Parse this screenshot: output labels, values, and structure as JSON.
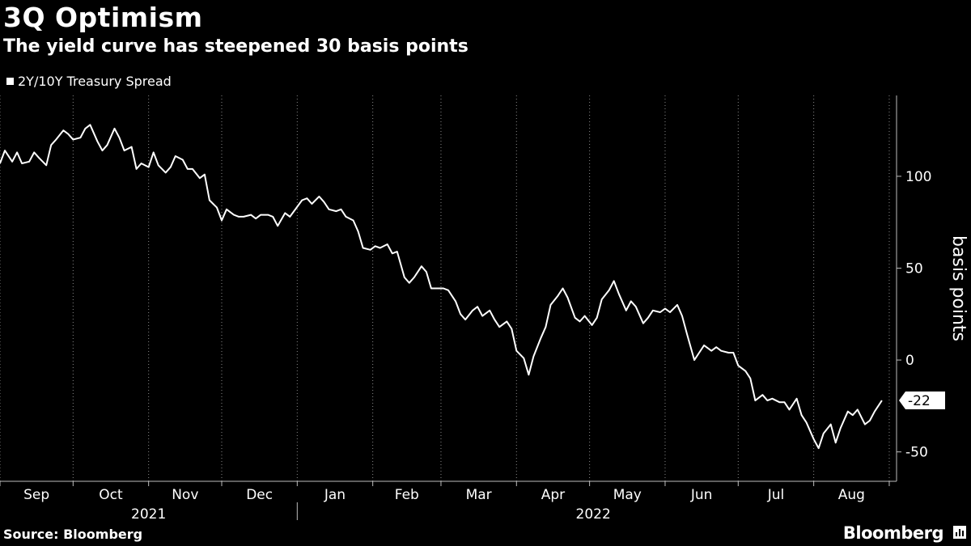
{
  "header": {
    "title": "3Q Optimism",
    "subtitle": "The yield curve has steepened 30 basis points"
  },
  "footer": {
    "source": "Source: Bloomberg",
    "brand": "Bloomberg",
    "brand_icon": "bloomberg-terminal-icon"
  },
  "chart_data": {
    "type": "line",
    "series": [
      {
        "name": "2Y/10Y Treasury Spread",
        "color": "#ffffff",
        "last_value_label": "-22",
        "points": [
          [
            "2021-09-01",
            107
          ],
          [
            "2021-09-03",
            114
          ],
          [
            "2021-09-06",
            108
          ],
          [
            "2021-09-08",
            113
          ],
          [
            "2021-09-10",
            107
          ],
          [
            "2021-09-13",
            108
          ],
          [
            "2021-09-15",
            113
          ],
          [
            "2021-09-17",
            110
          ],
          [
            "2021-09-20",
            106
          ],
          [
            "2021-09-22",
            117
          ],
          [
            "2021-09-24",
            120
          ],
          [
            "2021-09-27",
            125
          ],
          [
            "2021-09-29",
            123
          ],
          [
            "2021-10-01",
            120
          ],
          [
            "2021-10-04",
            121
          ],
          [
            "2021-10-06",
            126
          ],
          [
            "2021-10-08",
            128
          ],
          [
            "2021-10-11",
            119
          ],
          [
            "2021-10-13",
            114
          ],
          [
            "2021-10-15",
            117
          ],
          [
            "2021-10-18",
            126
          ],
          [
            "2021-10-20",
            121
          ],
          [
            "2021-10-22",
            114
          ],
          [
            "2021-10-25",
            116
          ],
          [
            "2021-10-27",
            104
          ],
          [
            "2021-10-29",
            107
          ],
          [
            "2021-11-01",
            105
          ],
          [
            "2021-11-03",
            113
          ],
          [
            "2021-11-05",
            106
          ],
          [
            "2021-11-08",
            102
          ],
          [
            "2021-11-10",
            105
          ],
          [
            "2021-11-12",
            111
          ],
          [
            "2021-11-15",
            109
          ],
          [
            "2021-11-17",
            104
          ],
          [
            "2021-11-19",
            104
          ],
          [
            "2021-11-22",
            99
          ],
          [
            "2021-11-24",
            101
          ],
          [
            "2021-11-26",
            87
          ],
          [
            "2021-11-29",
            83
          ],
          [
            "2021-12-01",
            76
          ],
          [
            "2021-12-03",
            82
          ],
          [
            "2021-12-06",
            79
          ],
          [
            "2021-12-08",
            78
          ],
          [
            "2021-12-10",
            78
          ],
          [
            "2021-12-13",
            79
          ],
          [
            "2021-12-15",
            77
          ],
          [
            "2021-12-17",
            79
          ],
          [
            "2021-12-20",
            79
          ],
          [
            "2021-12-22",
            78
          ],
          [
            "2021-12-24",
            73
          ],
          [
            "2021-12-27",
            80
          ],
          [
            "2021-12-29",
            78
          ],
          [
            "2022-01-03",
            87
          ],
          [
            "2022-01-05",
            88
          ],
          [
            "2022-01-07",
            85
          ],
          [
            "2022-01-10",
            89
          ],
          [
            "2022-01-12",
            86
          ],
          [
            "2022-01-14",
            82
          ],
          [
            "2022-01-17",
            81
          ],
          [
            "2022-01-19",
            82
          ],
          [
            "2022-01-21",
            78
          ],
          [
            "2022-01-24",
            76
          ],
          [
            "2022-01-26",
            70
          ],
          [
            "2022-01-28",
            61
          ],
          [
            "2022-01-31",
            60
          ],
          [
            "2022-02-02",
            62
          ],
          [
            "2022-02-04",
            61
          ],
          [
            "2022-02-07",
            63
          ],
          [
            "2022-02-09",
            58
          ],
          [
            "2022-02-11",
            59
          ],
          [
            "2022-02-14",
            45
          ],
          [
            "2022-02-16",
            42
          ],
          [
            "2022-02-18",
            45
          ],
          [
            "2022-02-21",
            51
          ],
          [
            "2022-02-23",
            48
          ],
          [
            "2022-02-25",
            39
          ],
          [
            "2022-02-28",
            39
          ],
          [
            "2022-03-02",
            39
          ],
          [
            "2022-03-04",
            38
          ],
          [
            "2022-03-07",
            32
          ],
          [
            "2022-03-09",
            25
          ],
          [
            "2022-03-11",
            22
          ],
          [
            "2022-03-14",
            27
          ],
          [
            "2022-03-16",
            29
          ],
          [
            "2022-03-18",
            24
          ],
          [
            "2022-03-21",
            27
          ],
          [
            "2022-03-23",
            22
          ],
          [
            "2022-03-25",
            18
          ],
          [
            "2022-03-28",
            21
          ],
          [
            "2022-03-30",
            17
          ],
          [
            "2022-04-01",
            5
          ],
          [
            "2022-04-04",
            1
          ],
          [
            "2022-04-06",
            -8
          ],
          [
            "2022-04-08",
            2
          ],
          [
            "2022-04-11",
            12
          ],
          [
            "2022-04-13",
            18
          ],
          [
            "2022-04-15",
            30
          ],
          [
            "2022-04-18",
            35
          ],
          [
            "2022-04-20",
            39
          ],
          [
            "2022-04-22",
            34
          ],
          [
            "2022-04-25",
            23
          ],
          [
            "2022-04-27",
            21
          ],
          [
            "2022-04-29",
            24
          ],
          [
            "2022-05-02",
            19
          ],
          [
            "2022-05-04",
            23
          ],
          [
            "2022-05-06",
            33
          ],
          [
            "2022-05-09",
            38
          ],
          [
            "2022-05-11",
            43
          ],
          [
            "2022-05-13",
            36
          ],
          [
            "2022-05-16",
            27
          ],
          [
            "2022-05-18",
            32
          ],
          [
            "2022-05-20",
            29
          ],
          [
            "2022-05-23",
            20
          ],
          [
            "2022-05-25",
            23
          ],
          [
            "2022-05-27",
            27
          ],
          [
            "2022-05-30",
            26
          ],
          [
            "2022-06-01",
            28
          ],
          [
            "2022-06-03",
            26
          ],
          [
            "2022-06-06",
            30
          ],
          [
            "2022-06-08",
            24
          ],
          [
            "2022-06-10",
            14
          ],
          [
            "2022-06-13",
            0
          ],
          [
            "2022-06-15",
            4
          ],
          [
            "2022-06-17",
            8
          ],
          [
            "2022-06-20",
            5
          ],
          [
            "2022-06-22",
            7
          ],
          [
            "2022-06-24",
            5
          ],
          [
            "2022-06-27",
            4
          ],
          [
            "2022-06-29",
            4
          ],
          [
            "2022-07-01",
            -3
          ],
          [
            "2022-07-04",
            -6
          ],
          [
            "2022-07-06",
            -10
          ],
          [
            "2022-07-08",
            -22
          ],
          [
            "2022-07-11",
            -19
          ],
          [
            "2022-07-13",
            -22
          ],
          [
            "2022-07-15",
            -21
          ],
          [
            "2022-07-18",
            -23
          ],
          [
            "2022-07-20",
            -23
          ],
          [
            "2022-07-22",
            -27
          ],
          [
            "2022-07-25",
            -21
          ],
          [
            "2022-07-27",
            -30
          ],
          [
            "2022-07-29",
            -34
          ],
          [
            "2022-08-01",
            -43
          ],
          [
            "2022-08-03",
            -48
          ],
          [
            "2022-08-05",
            -40
          ],
          [
            "2022-08-08",
            -35
          ],
          [
            "2022-08-10",
            -45
          ],
          [
            "2022-08-12",
            -37
          ],
          [
            "2022-08-15",
            -28
          ],
          [
            "2022-08-17",
            -30
          ],
          [
            "2022-08-19",
            -27
          ],
          [
            "2022-08-22",
            -35
          ],
          [
            "2022-08-24",
            -33
          ],
          [
            "2022-08-26",
            -28
          ],
          [
            "2022-08-29",
            -22
          ]
        ]
      }
    ],
    "x_axis": {
      "month_labels": [
        "Sep",
        "Oct",
        "Nov",
        "Dec",
        "Jan",
        "Feb",
        "Mar",
        "Apr",
        "May",
        "Jun",
        "Jul",
        "Aug"
      ],
      "month_starts": [
        "2021-09-01",
        "2021-10-01",
        "2021-11-01",
        "2021-12-01",
        "2022-01-01",
        "2022-02-01",
        "2022-03-01",
        "2022-04-01",
        "2022-05-01",
        "2022-06-01",
        "2022-07-01",
        "2022-08-01",
        "2022-09-01"
      ],
      "years": [
        {
          "label": "2021",
          "from": "2021-09-01",
          "to": "2022-01-01"
        },
        {
          "label": "2022",
          "from": "2022-01-01",
          "to": "2022-09-01"
        }
      ],
      "range": [
        "2021-09-01",
        "2022-09-04"
      ]
    },
    "y_axis": {
      "label": "basis points",
      "ticks": [
        100,
        50,
        0,
        -50
      ],
      "tick_labels": [
        "100",
        "50",
        "0",
        "-50"
      ],
      "range": [
        -66,
        144
      ],
      "position": "right"
    },
    "grid": "vertical dotted at month boundaries",
    "legend_position": "top-left"
  }
}
